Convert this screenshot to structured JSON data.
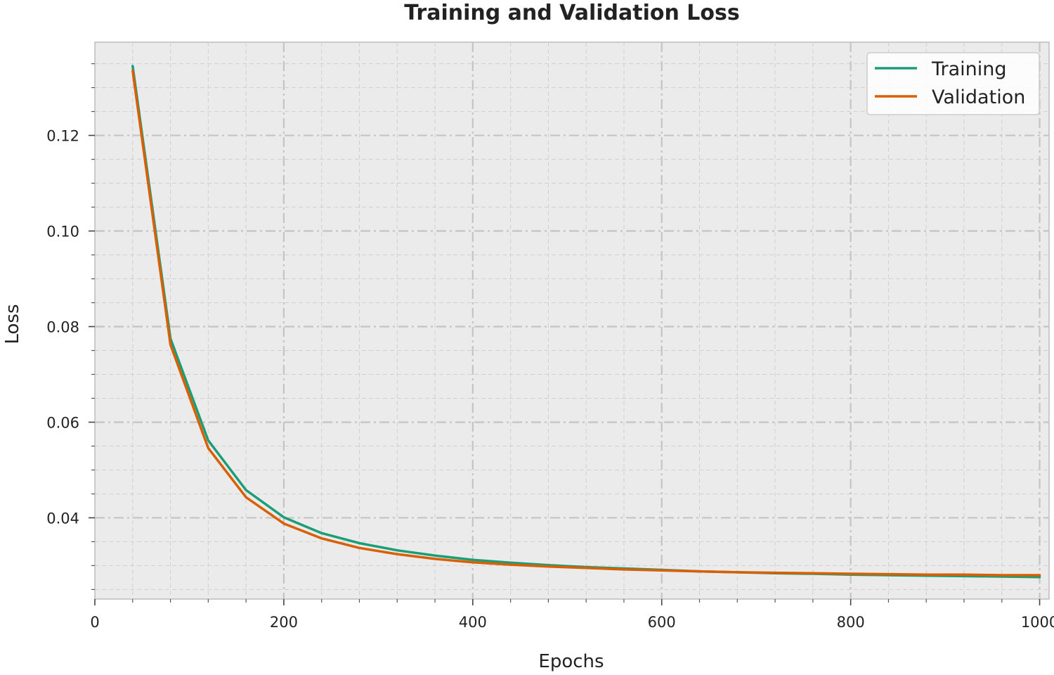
{
  "chart_data": {
    "type": "line",
    "title": "Training and Validation Loss",
    "xlabel": "Epochs",
    "ylabel": "Loss",
    "xlim": [
      0,
      1010
    ],
    "ylim": [
      0.023,
      0.1395
    ],
    "xticks": [
      0,
      200,
      400,
      600,
      800,
      1000
    ],
    "xtick_labels": [
      "0",
      "200",
      "400",
      "600",
      "800",
      "1000"
    ],
    "yticks": [
      0.04,
      0.06,
      0.08,
      0.1,
      0.12
    ],
    "ytick_labels": [
      "0.04",
      "0.06",
      "0.08",
      "0.10",
      "0.12"
    ],
    "grid": true,
    "legend_position": "top-right",
    "x": [
      40,
      80,
      120,
      160,
      200,
      240,
      280,
      320,
      360,
      400,
      440,
      480,
      520,
      560,
      600,
      640,
      680,
      720,
      760,
      800,
      840,
      880,
      920,
      960,
      1000
    ],
    "series": [
      {
        "name": "Training",
        "color": "#1b9e77",
        "values": [
          0.1345,
          0.0775,
          0.0562,
          0.0458,
          0.0401,
          0.0368,
          0.0347,
          0.0332,
          0.0321,
          0.0312,
          0.0306,
          0.0301,
          0.0297,
          0.0294,
          0.0291,
          0.0288,
          0.0286,
          0.0284,
          0.0283,
          0.0281,
          0.028,
          0.0279,
          0.0278,
          0.0277,
          0.0276
        ]
      },
      {
        "name": "Validation",
        "color": "#d95f02",
        "values": [
          0.1335,
          0.0762,
          0.0546,
          0.0443,
          0.0388,
          0.0357,
          0.0337,
          0.0324,
          0.0314,
          0.0307,
          0.0302,
          0.0298,
          0.0295,
          0.0292,
          0.029,
          0.0288,
          0.0286,
          0.0285,
          0.0284,
          0.0283,
          0.0282,
          0.0281,
          0.0281,
          0.028,
          0.028
        ]
      }
    ]
  }
}
